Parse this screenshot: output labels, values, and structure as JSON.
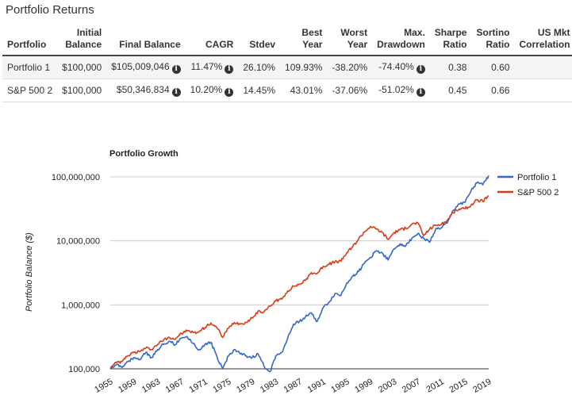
{
  "page_title": "Portfolio Returns",
  "table": {
    "headers": [
      "Portfolio",
      "Initial Balance",
      "Final Balance",
      "CAGR",
      "Stdev",
      "Best Year",
      "Worst Year",
      "Max. Drawdown",
      "Sharpe Ratio",
      "Sortino Ratio",
      "US Mkt Correlation"
    ],
    "rows": [
      {
        "name": "Portfolio 1",
        "initial": "$100,000",
        "final": "$105,009,046",
        "cagr": "11.47%",
        "stdev": "26.10%",
        "best": "109.93%",
        "worst": "-38.20%",
        "maxdd": "-74.40%",
        "sharpe": "0.38",
        "sortino": "0.60",
        "corr": ""
      },
      {
        "name": "S&P 500 2",
        "initial": "$100,000",
        "final": "$50,346,834",
        "cagr": "10.20%",
        "stdev": "14.45%",
        "best": "43.01%",
        "worst": "-37.06%",
        "maxdd": "-51.02%",
        "sharpe": "0.45",
        "sortino": "0.66",
        "corr": ""
      }
    ],
    "info_icon": "info-circle-icon"
  },
  "chart_data": {
    "type": "line",
    "title": "Portfolio Growth",
    "ylabel": "Portfolio Balance ($)",
    "xlabel": "",
    "yscale": "log",
    "ylim": [
      100000,
      100000000
    ],
    "xlim": [
      1955,
      2019
    ],
    "y_ticks": [
      "100,000",
      "1,000,000",
      "10,000,000",
      "100,000,000"
    ],
    "y_tick_values": [
      100000,
      1000000,
      10000000,
      100000000
    ],
    "x_ticks": [
      "1955",
      "1959",
      "1963",
      "1967",
      "1971",
      "1975",
      "1979",
      "1983",
      "1987",
      "1991",
      "1995",
      "1999",
      "2003",
      "2007",
      "2011",
      "2015",
      "2019"
    ],
    "x_tick_values": [
      1955,
      1959,
      1963,
      1967,
      1971,
      1975,
      1979,
      1983,
      1987,
      1991,
      1995,
      1999,
      2003,
      2007,
      2011,
      2015,
      2019
    ],
    "grid": true,
    "legend_position": "top-right",
    "series": [
      {
        "name": "Portfolio 1",
        "color": "#3366cc",
        "points": [
          [
            1955,
            100000
          ],
          [
            1956,
            115000
          ],
          [
            1957,
            105000
          ],
          [
            1958,
            130000
          ],
          [
            1959,
            150000
          ],
          [
            1960,
            140000
          ],
          [
            1961,
            180000
          ],
          [
            1962,
            150000
          ],
          [
            1963,
            200000
          ],
          [
            1964,
            240000
          ],
          [
            1965,
            270000
          ],
          [
            1966,
            240000
          ],
          [
            1967,
            300000
          ],
          [
            1968,
            320000
          ],
          [
            1969,
            250000
          ],
          [
            1970,
            200000
          ],
          [
            1971,
            240000
          ],
          [
            1972,
            260000
          ],
          [
            1973,
            160000
          ],
          [
            1974,
            100000
          ],
          [
            1975,
            160000
          ],
          [
            1976,
            200000
          ],
          [
            1977,
            170000
          ],
          [
            1978,
            160000
          ],
          [
            1979,
            150000
          ],
          [
            1980,
            170000
          ],
          [
            1981,
            110000
          ],
          [
            1982,
            90000
          ],
          [
            1983,
            160000
          ],
          [
            1984,
            180000
          ],
          [
            1985,
            300000
          ],
          [
            1986,
            500000
          ],
          [
            1987,
            550000
          ],
          [
            1988,
            650000
          ],
          [
            1989,
            750000
          ],
          [
            1990,
            550000
          ],
          [
            1991,
            900000
          ],
          [
            1992,
            1100000
          ],
          [
            1993,
            1500000
          ],
          [
            1994,
            1400000
          ],
          [
            1995,
            2200000
          ],
          [
            1996,
            2800000
          ],
          [
            1997,
            3300000
          ],
          [
            1998,
            4500000
          ],
          [
            1999,
            5500000
          ],
          [
            2000,
            7000000
          ],
          [
            2001,
            6500000
          ],
          [
            2002,
            5000000
          ],
          [
            2003,
            7500000
          ],
          [
            2004,
            9000000
          ],
          [
            2005,
            8500000
          ],
          [
            2006,
            11000000
          ],
          [
            2007,
            13000000
          ],
          [
            2008,
            11000000
          ],
          [
            2009,
            9500000
          ],
          [
            2010,
            15000000
          ],
          [
            2011,
            16000000
          ],
          [
            2012,
            19000000
          ],
          [
            2013,
            30000000
          ],
          [
            2014,
            38000000
          ],
          [
            2015,
            40000000
          ],
          [
            2016,
            60000000
          ],
          [
            2017,
            80000000
          ],
          [
            2018,
            75000000
          ],
          [
            2019,
            105009046
          ]
        ]
      },
      {
        "name": "S&P 500 2",
        "color": "#dc3912",
        "points": [
          [
            1955,
            100000
          ],
          [
            1956,
            125000
          ],
          [
            1957,
            130000
          ],
          [
            1958,
            160000
          ],
          [
            1959,
            180000
          ],
          [
            1960,
            185000
          ],
          [
            1961,
            210000
          ],
          [
            1962,
            200000
          ],
          [
            1963,
            240000
          ],
          [
            1964,
            280000
          ],
          [
            1965,
            310000
          ],
          [
            1966,
            290000
          ],
          [
            1967,
            360000
          ],
          [
            1968,
            390000
          ],
          [
            1969,
            370000
          ],
          [
            1970,
            380000
          ],
          [
            1971,
            440000
          ],
          [
            1972,
            520000
          ],
          [
            1973,
            440000
          ],
          [
            1974,
            310000
          ],
          [
            1975,
            430000
          ],
          [
            1976,
            530000
          ],
          [
            1977,
            500000
          ],
          [
            1978,
            530000
          ],
          [
            1979,
            620000
          ],
          [
            1980,
            800000
          ],
          [
            1981,
            770000
          ],
          [
            1982,
            950000
          ],
          [
            1983,
            1150000
          ],
          [
            1984,
            1230000
          ],
          [
            1985,
            1650000
          ],
          [
            1986,
            1950000
          ],
          [
            1987,
            2100000
          ],
          [
            1988,
            2400000
          ],
          [
            1989,
            3200000
          ],
          [
            1990,
            3100000
          ],
          [
            1991,
            4000000
          ],
          [
            1992,
            4300000
          ],
          [
            1993,
            4700000
          ],
          [
            1994,
            4800000
          ],
          [
            1995,
            6500000
          ],
          [
            1996,
            8100000
          ],
          [
            1997,
            10700000
          ],
          [
            1998,
            13900000
          ],
          [
            1999,
            16800000
          ],
          [
            2000,
            15300000
          ],
          [
            2001,
            13500000
          ],
          [
            2002,
            10500000
          ],
          [
            2003,
            13500000
          ],
          [
            2004,
            14900000
          ],
          [
            2005,
            15700000
          ],
          [
            2006,
            18200000
          ],
          [
            2007,
            19200000
          ],
          [
            2008,
            12100000
          ],
          [
            2009,
            15300000
          ],
          [
            2010,
            17600000
          ],
          [
            2011,
            18000000
          ],
          [
            2012,
            20900000
          ],
          [
            2013,
            27700000
          ],
          [
            2014,
            31400000
          ],
          [
            2015,
            31900000
          ],
          [
            2016,
            35700000
          ],
          [
            2017,
            43500000
          ],
          [
            2018,
            41600000
          ],
          [
            2019,
            50346834
          ]
        ]
      }
    ]
  }
}
